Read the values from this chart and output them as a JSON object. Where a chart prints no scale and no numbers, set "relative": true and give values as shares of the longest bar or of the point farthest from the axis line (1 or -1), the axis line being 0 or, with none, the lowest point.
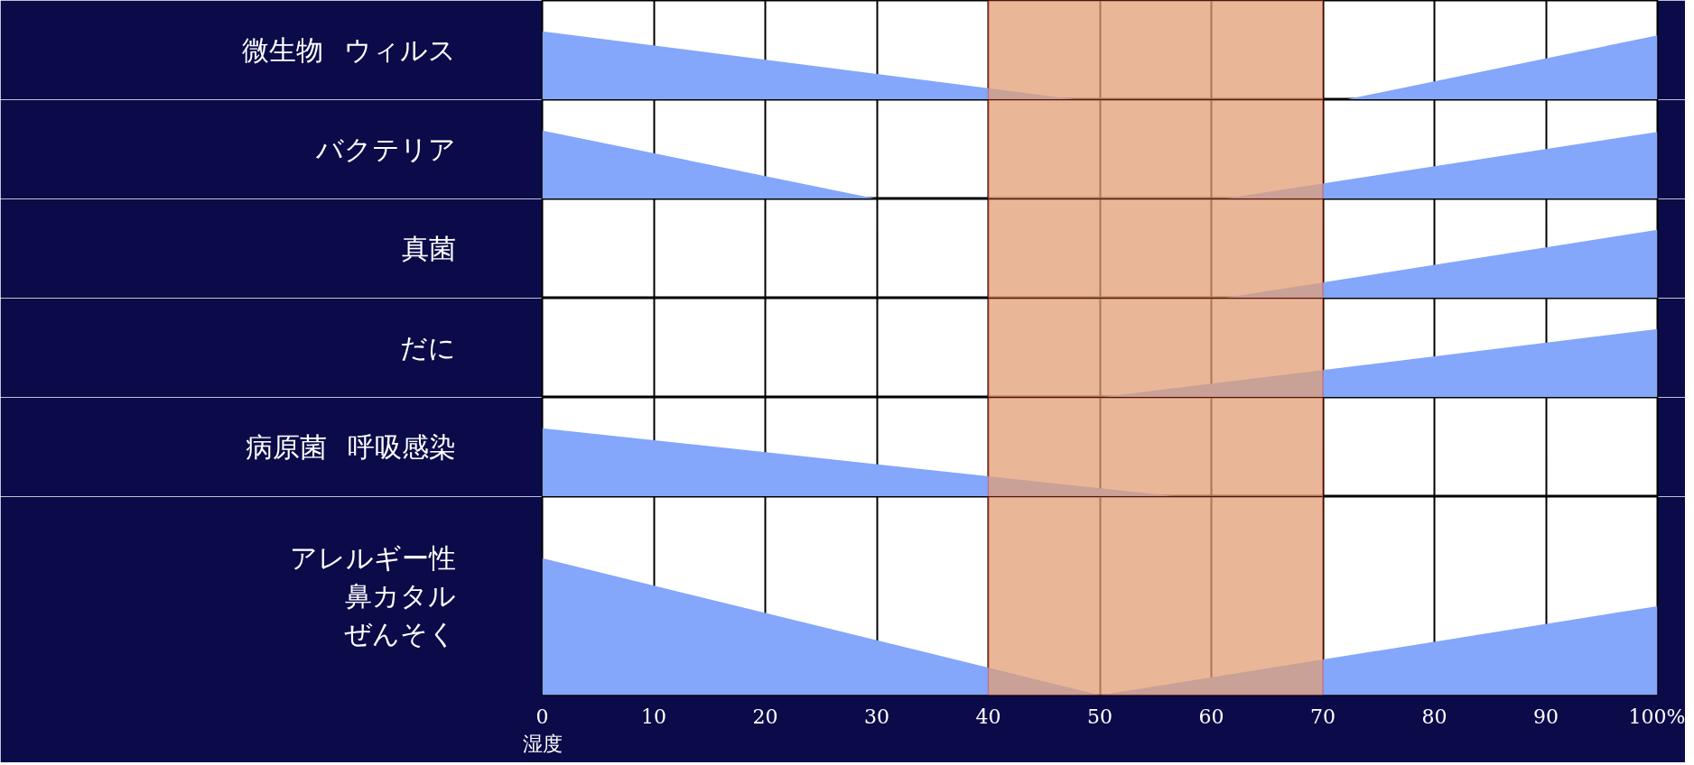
{
  "chart_data": [
    {
      "type": "area",
      "relative": true,
      "ylabel": "ウィルス",
      "annotations": [
        "微生物"
      ],
      "xlim": [
        0,
        100
      ],
      "grid": "x",
      "tick_labels": false,
      "bands": [
        {
          "axis": "x",
          "from": 40,
          "to": 70,
          "color": "#e29f75"
        }
      ],
      "series": [
        {
          "color": "#84a6fb",
          "x": [
            0,
            48,
            72,
            100
          ],
          "values": [
            1,
            0,
            0,
            0.94
          ]
        }
      ]
    },
    {
      "type": "area",
      "relative": true,
      "ylabel": "バクテリア",
      "xlim": [
        0,
        100
      ],
      "grid": "x",
      "tick_labels": false,
      "bands": [
        {
          "axis": "x",
          "from": 40,
          "to": 70,
          "color": "#e29f75"
        }
      ],
      "series": [
        {
          "color": "#84a6fb",
          "x": [
            0,
            30,
            61,
            100
          ],
          "values": [
            1,
            0,
            0,
            0.98
          ]
        }
      ]
    },
    {
      "type": "area",
      "relative": true,
      "ylabel": "真菌",
      "xlim": [
        0,
        100
      ],
      "grid": "x",
      "tick_labels": false,
      "bands": [
        {
          "axis": "x",
          "from": 40,
          "to": 70,
          "color": "#e29f75"
        }
      ],
      "series": [
        {
          "color": "#84a6fb",
          "x": [
            0,
            61,
            100
          ],
          "values": [
            0,
            0,
            1
          ]
        }
      ]
    },
    {
      "type": "area",
      "relative": true,
      "ylabel": "だに",
      "xlim": [
        0,
        100
      ],
      "grid": "x",
      "tick_labels": false,
      "bands": [
        {
          "axis": "x",
          "from": 40,
          "to": 70,
          "color": "#e29f75"
        }
      ],
      "series": [
        {
          "color": "#84a6fb",
          "x": [
            0,
            50,
            100
          ],
          "values": [
            0,
            0,
            1
          ]
        }
      ]
    },
    {
      "type": "area",
      "relative": true,
      "ylabel": "呼吸感染",
      "annotations": [
        "病原菌"
      ],
      "xlim": [
        0,
        100
      ],
      "grid": "x",
      "tick_labels": false,
      "bands": [
        {
          "axis": "x",
          "from": 40,
          "to": 70,
          "color": "#e29f75"
        }
      ],
      "series": [
        {
          "color": "#84a6fb",
          "x": [
            0,
            57,
            100
          ],
          "values": [
            1,
            0,
            0
          ]
        }
      ]
    },
    {
      "type": "area",
      "relative": true,
      "ylabel": "アレルギー性鼻カタルぜんそく",
      "xlabel": "湿度",
      "xlim": [
        0,
        100
      ],
      "xticks": [
        0,
        10,
        20,
        30,
        40,
        50,
        60,
        70,
        80,
        90,
        {
          "value": 100,
          "label": "100%"
        }
      ],
      "grid": "x",
      "tick_labels": "x",
      "bands": [
        {
          "axis": "x",
          "from": 40,
          "to": 70,
          "color": "#e29f75"
        }
      ],
      "series": [
        {
          "color": "#84a6fb",
          "x": [
            0,
            50,
            100
          ],
          "values": [
            1,
            0,
            0.65
          ]
        }
      ]
    }
  ]
}
